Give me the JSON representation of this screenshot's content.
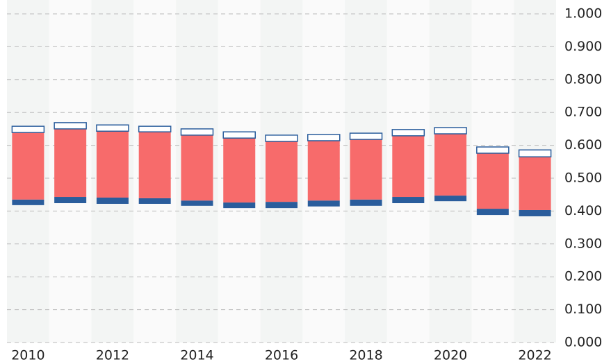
{
  "chart_data": {
    "type": "floating-stacked-bar",
    "categories": [
      "2010",
      null,
      "2012",
      null,
      "2014",
      null,
      "2016",
      null,
      "2018",
      null,
      "2020",
      null,
      "2022"
    ],
    "base": [
      0.418,
      0.424,
      0.422,
      0.422,
      0.416,
      0.409,
      0.409,
      0.414,
      0.416,
      0.424,
      0.43,
      0.388,
      0.384
    ],
    "series": [
      {
        "color": "#2a5d9c",
        "values": [
          0.017,
          0.019,
          0.019,
          0.017,
          0.016,
          0.017,
          0.019,
          0.018,
          0.019,
          0.019,
          0.017,
          0.019,
          0.019
        ]
      },
      {
        "color": "#f76b6b",
        "values": [
          0.204,
          0.207,
          0.202,
          0.202,
          0.199,
          0.196,
          0.184,
          0.182,
          0.183,
          0.186,
          0.188,
          0.169,
          0.162
        ]
      },
      {
        "color": "#ffffff",
        "values": [
          0.019,
          0.019,
          0.019,
          0.017,
          0.019,
          0.019,
          0.019,
          0.019,
          0.019,
          0.019,
          0.019,
          0.019,
          0.021
        ]
      }
    ],
    "outline": "#2a5d9c",
    "ylim": [
      0,
      1
    ],
    "yticks": [
      {
        "value": 0,
        "label": "0.000"
      },
      {
        "value": 0.1,
        "label": "0.100"
      },
      {
        "value": 0.2,
        "label": "0.200"
      },
      {
        "value": 0.3,
        "label": "0.300"
      },
      {
        "value": 0.4,
        "label": "0.400"
      },
      {
        "value": 0.5,
        "label": "0.500"
      },
      {
        "value": 0.6,
        "label": "0.600"
      },
      {
        "value": 0.7,
        "label": "0.700"
      },
      {
        "value": 0.8,
        "label": "0.800"
      },
      {
        "value": 0.9,
        "label": "0.900"
      },
      {
        "value": 1,
        "label": "1.000"
      }
    ],
    "grid": true
  }
}
